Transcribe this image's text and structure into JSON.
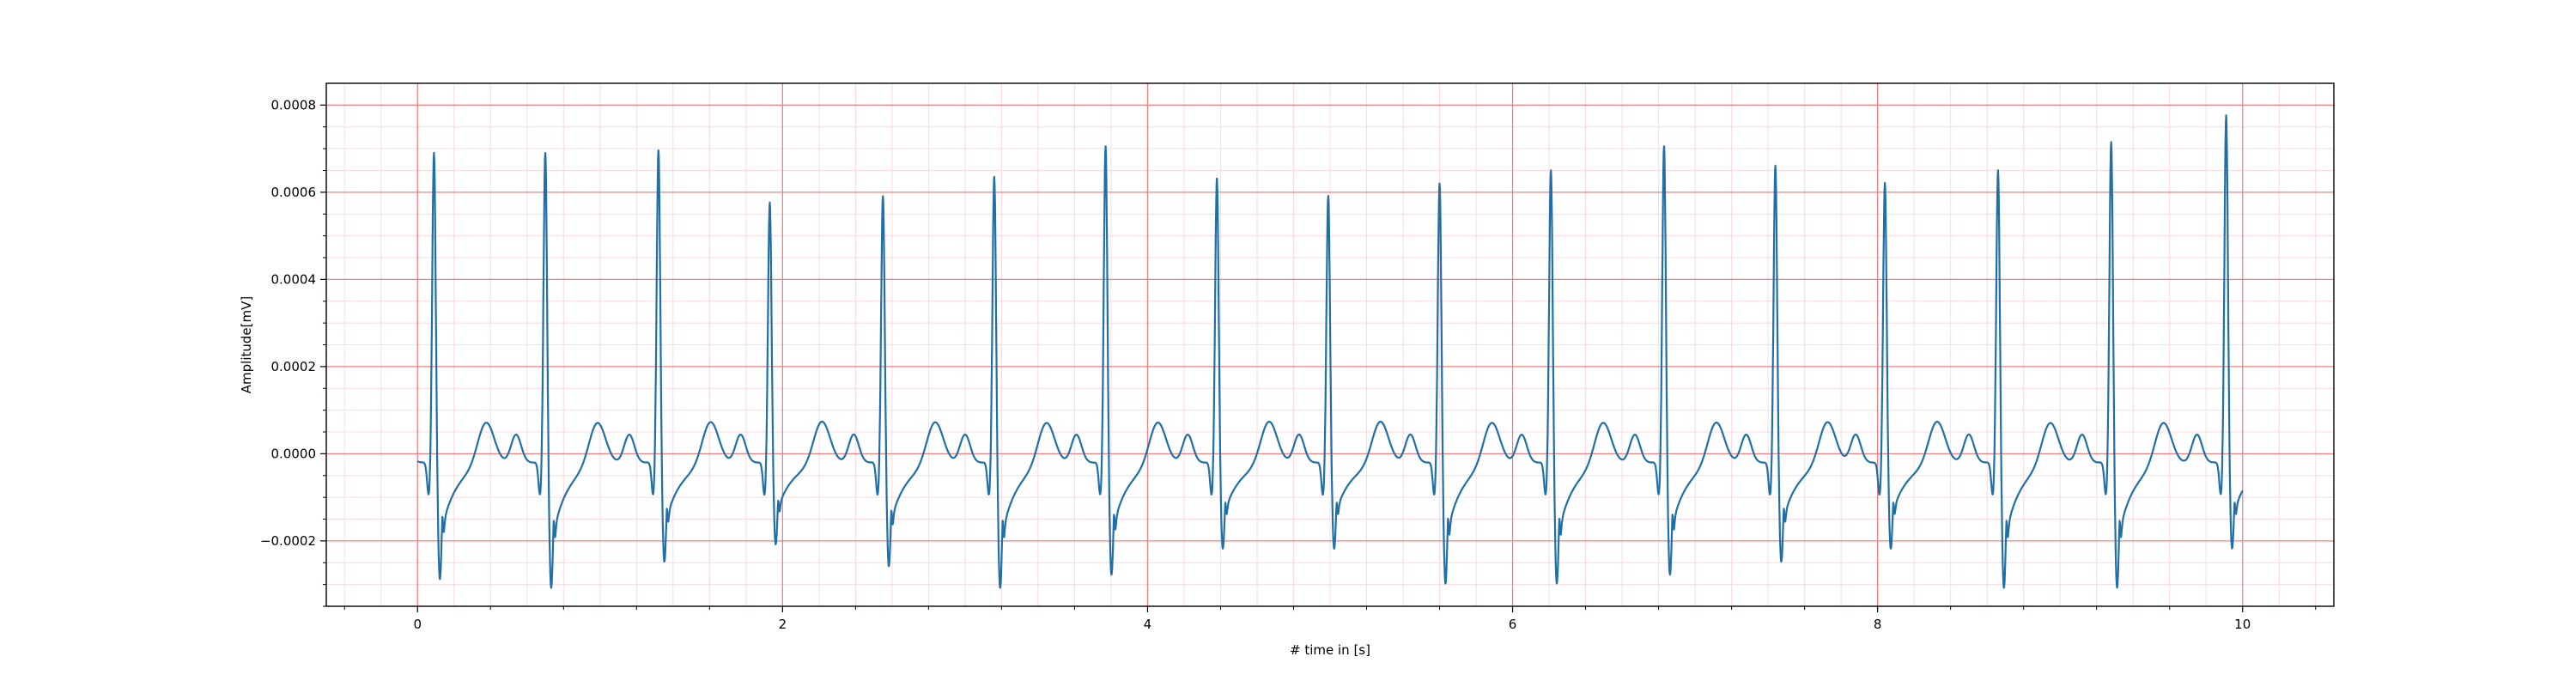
{
  "chart_data": {
    "type": "line",
    "title": "",
    "xlabel": "# time in [s]",
    "ylabel": "Amplitude[mV]",
    "xlim": [
      -0.5,
      10.5
    ],
    "ylim": [
      -0.00035,
      0.00085
    ],
    "x_ticks": [
      0,
      2,
      4,
      6,
      8,
      10
    ],
    "x_tick_labels": [
      "0",
      "2",
      "4",
      "6",
      "8",
      "10"
    ],
    "y_ticks": [
      -0.0002,
      0.0,
      0.0002,
      0.0004,
      0.0006,
      0.0008
    ],
    "y_tick_labels": [
      "−0.0002",
      "0.0000",
      "0.0002",
      "0.0004",
      "0.0006",
      "0.0008"
    ],
    "grid": {
      "major": true,
      "minor": true,
      "major_color": "#f08080",
      "minor_color": "#ffd8df"
    },
    "line_color": "#1f6fa8",
    "series": [
      {
        "beats": [
          {
            "t": 0.09,
            "peak": 0.000715,
            "trough": -0.00027
          },
          {
            "t": 0.7,
            "peak": 0.000715,
            "trough": -0.00029
          },
          {
            "t": 1.32,
            "peak": 0.00072,
            "trough": -0.00023
          },
          {
            "t": 1.93,
            "peak": 0.0006,
            "trough": -0.00019
          },
          {
            "t": 2.55,
            "peak": 0.000615,
            "trough": -0.00024
          },
          {
            "t": 3.16,
            "peak": 0.00066,
            "trough": -0.00029
          },
          {
            "t": 3.77,
            "peak": 0.00073,
            "trough": -0.00026
          },
          {
            "t": 4.38,
            "peak": 0.000655,
            "trough": -0.0002
          },
          {
            "t": 4.99,
            "peak": 0.000615,
            "trough": -0.0002
          },
          {
            "t": 5.6,
            "peak": 0.000645,
            "trough": -0.00028
          },
          {
            "t": 6.21,
            "peak": 0.000675,
            "trough": -0.00028
          },
          {
            "t": 6.83,
            "peak": 0.00073,
            "trough": -0.00026
          },
          {
            "t": 7.44,
            "peak": 0.000685,
            "trough": -0.00023
          },
          {
            "t": 8.04,
            "peak": 0.000645,
            "trough": -0.0002
          },
          {
            "t": 8.66,
            "peak": 0.000675,
            "trough": -0.00029
          },
          {
            "t": 9.28,
            "peak": 0.00074,
            "trough": -0.00029
          },
          {
            "t": 9.91,
            "peak": 0.0008,
            "trough": -0.0002
          }
        ],
        "baseline": -2e-05,
        "t_wave_amplitude": 8e-05,
        "p_wave_amplitude": 5e-05
      }
    ]
  }
}
